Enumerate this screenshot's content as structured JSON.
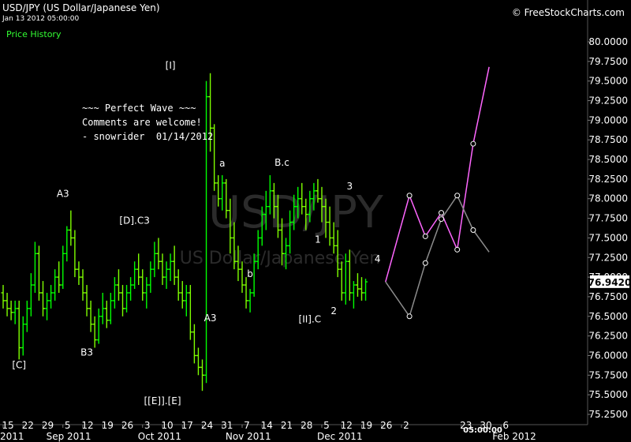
{
  "header": {
    "title": "USD/JPY (US Dollar/Japanese Yen)",
    "datetime": "Jan 13 2012 05:00:00",
    "panel_label": "Price History",
    "brand": "© FreeStockCharts.com"
  },
  "watermark": {
    "symbol": "USD/JPY",
    "name": "US Dollar/Japanese Yen"
  },
  "note_lines": [
    "~~~ Perfect Wave ~~~",
    "Comments are welcome!",
    "- snowrider  01/14/2012"
  ],
  "colors": {
    "up": "#00ff00",
    "down": "#7fff00",
    "projection_pink": "#ff66ff",
    "projection_gray": "#8c8c8c",
    "background": "#000000"
  },
  "chart_data": {
    "type": "bar",
    "title": "USD/JPY (US Dollar/Japanese Yen)",
    "ylim": [
      75.25,
      80.0
    ],
    "yticks": [
      "80.0000",
      "79.7500",
      "79.5000",
      "79.2500",
      "79.0000",
      "78.7500",
      "78.5000",
      "78.2500",
      "78.0000",
      "77.7500",
      "77.5000",
      "77.2500",
      "77.0000",
      "76.7500",
      "76.5000",
      "76.2500",
      "76.0000",
      "75.7500",
      "75.5000",
      "75.2500"
    ],
    "ytick_values": [
      80.0,
      79.75,
      79.5,
      79.25,
      79.0,
      78.75,
      78.5,
      78.25,
      78.0,
      77.75,
      77.5,
      77.25,
      77.0,
      76.75,
      76.5,
      76.25,
      76.0,
      75.75,
      75.5,
      75.25
    ],
    "last_price": "76.9420",
    "last_price_value": 76.942,
    "cursor_time": "05:00:00",
    "x_day_ticks": [
      {
        "label": "15",
        "x": 0
      },
      {
        "label": "22",
        "x": 5
      },
      {
        "label": "29",
        "x": 10
      },
      {
        "label": "5",
        "x": 15
      },
      {
        "label": "12",
        "x": 20
      },
      {
        "label": "19",
        "x": 25
      },
      {
        "label": "26",
        "x": 30
      },
      {
        "label": "3",
        "x": 35
      },
      {
        "label": "10",
        "x": 40
      },
      {
        "label": "17",
        "x": 45
      },
      {
        "label": "24",
        "x": 50
      },
      {
        "label": "31",
        "x": 55
      },
      {
        "label": "7",
        "x": 60
      },
      {
        "label": "14",
        "x": 65
      },
      {
        "label": "21",
        "x": 70
      },
      {
        "label": "28",
        "x": 75
      },
      {
        "label": "5",
        "x": 80
      },
      {
        "label": "12",
        "x": 85
      },
      {
        "label": "19",
        "x": 90
      },
      {
        "label": "26",
        "x": 95
      },
      {
        "label": "2",
        "x": 100
      },
      {
        "label": "23",
        "x": 115
      },
      {
        "label": "30",
        "x": 120
      },
      {
        "label": "6",
        "x": 125
      }
    ],
    "x_month_ticks": [
      {
        "label": "2011",
        "x": 0
      },
      {
        "label": "Sep 2011",
        "x": 12
      },
      {
        "label": "Oct 2011",
        "x": 35
      },
      {
        "label": "Nov 2011",
        "x": 57
      },
      {
        "label": "Dec 2011",
        "x": 80
      },
      {
        "label": "Feb 2012",
        "x": 124
      }
    ],
    "ohlc": [
      [
        76.8,
        76.9,
        76.6,
        76.7
      ],
      [
        76.7,
        76.8,
        76.5,
        76.6
      ],
      [
        76.6,
        76.7,
        76.45,
        76.55
      ],
      [
        76.55,
        76.7,
        76.4,
        76.6
      ],
      [
        76.6,
        76.7,
        75.95,
        76.1
      ],
      [
        76.1,
        76.5,
        76.0,
        76.4
      ],
      [
        76.4,
        76.7,
        76.3,
        76.6
      ],
      [
        76.6,
        77.05,
        76.5,
        76.9
      ],
      [
        76.9,
        77.45,
        76.8,
        77.3
      ],
      [
        77.3,
        77.4,
        76.7,
        76.8
      ],
      [
        76.8,
        76.95,
        76.5,
        76.6
      ],
      [
        76.6,
        76.8,
        76.45,
        76.7
      ],
      [
        76.7,
        76.9,
        76.6,
        76.8
      ],
      [
        76.8,
        77.1,
        76.7,
        77.0
      ],
      [
        77.0,
        77.2,
        76.8,
        76.9
      ],
      [
        76.9,
        77.4,
        76.85,
        77.3
      ],
      [
        77.3,
        77.65,
        77.2,
        77.6
      ],
      [
        77.6,
        77.85,
        77.4,
        77.5
      ],
      [
        77.5,
        77.6,
        77.0,
        77.1
      ],
      [
        77.1,
        77.2,
        76.9,
        77.0
      ],
      [
        77.0,
        77.1,
        76.7,
        76.8
      ],
      [
        76.8,
        76.9,
        76.5,
        76.6
      ],
      [
        76.6,
        76.7,
        76.3,
        76.4
      ],
      [
        76.4,
        76.5,
        76.1,
        76.2
      ],
      [
        76.2,
        76.6,
        76.15,
        76.5
      ],
      [
        76.5,
        76.8,
        76.4,
        76.6
      ],
      [
        76.6,
        76.7,
        76.35,
        76.45
      ],
      [
        76.45,
        76.8,
        76.4,
        76.7
      ],
      [
        76.7,
        77.0,
        76.6,
        76.9
      ],
      [
        76.9,
        77.1,
        76.7,
        76.8
      ],
      [
        76.8,
        76.9,
        76.5,
        76.6
      ],
      [
        76.6,
        76.9,
        76.55,
        76.8
      ],
      [
        76.8,
        77.0,
        76.7,
        76.9
      ],
      [
        76.9,
        77.2,
        76.85,
        77.1
      ],
      [
        77.1,
        77.3,
        76.9,
        77.0
      ],
      [
        77.0,
        77.1,
        76.7,
        76.8
      ],
      [
        76.8,
        77.0,
        76.6,
        76.9
      ],
      [
        76.9,
        77.2,
        76.8,
        77.1
      ],
      [
        77.1,
        77.45,
        77.0,
        77.3
      ],
      [
        77.3,
        77.5,
        77.1,
        77.2
      ],
      [
        77.2,
        77.3,
        76.9,
        77.0
      ],
      [
        77.0,
        77.2,
        76.85,
        77.1
      ],
      [
        77.1,
        77.3,
        76.95,
        77.2
      ],
      [
        77.2,
        77.4,
        76.9,
        77.0
      ],
      [
        77.0,
        77.1,
        76.7,
        76.8
      ],
      [
        76.8,
        76.95,
        76.6,
        76.7
      ],
      [
        76.7,
        76.9,
        76.5,
        76.8
      ],
      [
        76.8,
        76.9,
        76.2,
        76.3
      ],
      [
        76.3,
        76.4,
        75.9,
        76.0
      ],
      [
        76.0,
        76.1,
        75.75,
        75.85
      ],
      [
        75.85,
        75.95,
        75.55,
        75.75
      ],
      [
        75.75,
        79.5,
        75.65,
        79.3
      ],
      [
        79.3,
        79.6,
        78.6,
        78.9
      ],
      [
        78.9,
        78.95,
        78.1,
        78.2
      ],
      [
        78.2,
        78.3,
        77.9,
        78.0
      ],
      [
        78.0,
        78.3,
        77.85,
        78.2
      ],
      [
        78.2,
        78.25,
        77.75,
        77.85
      ],
      [
        77.85,
        78.0,
        77.3,
        77.5
      ],
      [
        77.5,
        77.7,
        77.1,
        77.2
      ],
      [
        77.2,
        77.4,
        76.95,
        77.1
      ],
      [
        77.1,
        77.2,
        76.8,
        76.9
      ],
      [
        76.9,
        77.0,
        76.6,
        76.7
      ],
      [
        76.7,
        76.85,
        76.55,
        76.8
      ],
      [
        76.8,
        77.3,
        76.75,
        77.2
      ],
      [
        77.2,
        77.6,
        77.1,
        77.5
      ],
      [
        77.5,
        77.9,
        77.4,
        77.8
      ],
      [
        77.8,
        78.1,
        77.6,
        77.9
      ],
      [
        77.9,
        78.3,
        77.8,
        78.1
      ],
      [
        78.1,
        78.2,
        77.75,
        77.9
      ],
      [
        77.9,
        78.05,
        77.5,
        77.6
      ],
      [
        77.6,
        77.75,
        77.15,
        77.3
      ],
      [
        77.3,
        77.5,
        77.1,
        77.4
      ],
      [
        77.4,
        77.85,
        77.3,
        77.7
      ],
      [
        77.7,
        78.05,
        77.6,
        77.9
      ],
      [
        77.9,
        78.15,
        77.75,
        78.0
      ],
      [
        78.0,
        78.2,
        77.8,
        77.9
      ],
      [
        77.9,
        78.0,
        77.6,
        77.8
      ],
      [
        77.8,
        78.1,
        77.7,
        78.0
      ],
      [
        78.0,
        78.2,
        77.85,
        78.1
      ],
      [
        78.1,
        78.25,
        77.95,
        78.0
      ],
      [
        78.0,
        78.15,
        77.7,
        77.9
      ],
      [
        77.9,
        78.0,
        77.5,
        77.7
      ],
      [
        77.7,
        77.9,
        77.4,
        77.5
      ],
      [
        77.5,
        77.7,
        77.3,
        77.4
      ],
      [
        77.4,
        77.6,
        77.0,
        77.1
      ],
      [
        77.1,
        77.2,
        76.7,
        76.8
      ],
      [
        76.8,
        77.3,
        76.65,
        77.2
      ],
      [
        77.2,
        77.35,
        76.7,
        76.8
      ],
      [
        76.8,
        76.95,
        76.6,
        76.9
      ],
      [
        76.9,
        77.05,
        76.75,
        76.85
      ],
      [
        76.85,
        77.0,
        76.7,
        76.8
      ],
      [
        76.8,
        76.98,
        76.7,
        76.94
      ]
    ],
    "projections": [
      {
        "name": "pink",
        "color": "#ff66ff",
        "points": [
          [
            96,
            76.94
          ],
          [
            102,
            78.04
          ],
          [
            106,
            77.52
          ],
          [
            110,
            77.82
          ],
          [
            114,
            77.35
          ],
          [
            118,
            78.7
          ],
          [
            122,
            79.68
          ]
        ]
      },
      {
        "name": "gray",
        "color": "#8c8c8c",
        "points": [
          [
            96,
            76.94
          ],
          [
            102,
            76.5
          ],
          [
            106,
            77.18
          ],
          [
            110,
            77.74
          ],
          [
            114,
            78.04
          ],
          [
            118,
            77.6
          ],
          [
            122,
            77.32
          ]
        ]
      }
    ],
    "annotations": [
      {
        "text": "[C]",
        "x": 4,
        "y": 75.84
      },
      {
        "text": "A3",
        "x": 15,
        "y": 78.02
      },
      {
        "text": "B3",
        "x": 21,
        "y": 76.0
      },
      {
        "text": "[D].C3",
        "x": 33,
        "y": 77.68
      },
      {
        "text": "[I]",
        "x": 42,
        "y": 79.66
      },
      {
        "text": "[[E]].[E]",
        "x": 40,
        "y": 75.38
      },
      {
        "text": "a",
        "x": 55,
        "y": 78.41
      },
      {
        "text": "b",
        "x": 62,
        "y": 77.0
      },
      {
        "text": "A3",
        "x": 52,
        "y": 76.44
      },
      {
        "text": "B.c",
        "x": 70,
        "y": 78.42
      },
      {
        "text": "1",
        "x": 79,
        "y": 77.44
      },
      {
        "text": "[II].C",
        "x": 77,
        "y": 76.42
      },
      {
        "text": "2",
        "x": 83,
        "y": 76.53
      },
      {
        "text": "3",
        "x": 87,
        "y": 78.12
      },
      {
        "text": "4",
        "x": 94,
        "y": 77.19
      }
    ]
  }
}
